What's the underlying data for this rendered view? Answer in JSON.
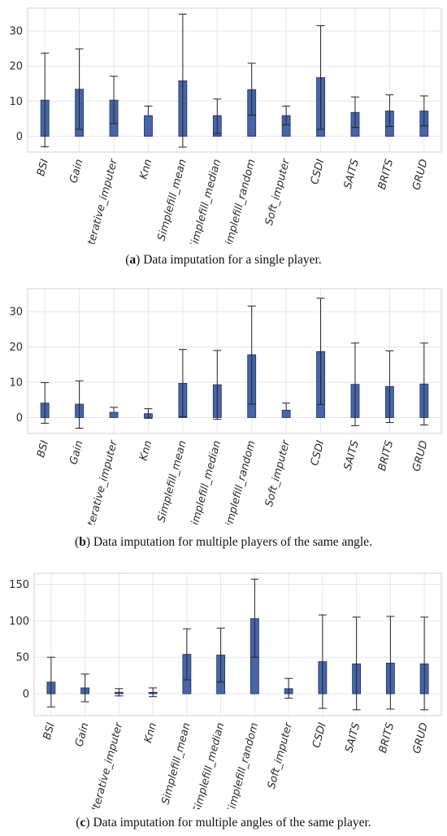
{
  "colors": {
    "bar": "#4766a8",
    "bar_edge": "#1d2f5c",
    "grid": "#e6e6e6",
    "axes": "#d0d0d0",
    "whisker": "#222222"
  },
  "chart_data": [
    {
      "type": "bar",
      "categories": [
        "BSI",
        "Gain",
        "Iterative_imputer",
        "Knn",
        "Simplefill_mean",
        "Simplefill_median",
        "Simplefill_random",
        "Soft_imputer",
        "CSDI",
        "SAITS",
        "BRITS",
        "GRUD"
      ],
      "values": [
        10.3,
        13.4,
        10.3,
        5.9,
        15.8,
        5.9,
        13.3,
        5.9,
        16.7,
        6.8,
        7.2,
        7.2
      ],
      "upper": [
        23.7,
        24.9,
        17.1,
        8.6,
        34.8,
        10.6,
        20.8,
        8.6,
        31.5,
        11.2,
        11.8,
        11.5
      ],
      "lower": [
        -3.0,
        null,
        null,
        null,
        -3.1,
        null,
        null,
        null,
        null,
        null,
        null,
        null
      ],
      "inner": [
        null,
        2.0,
        3.6,
        null,
        null,
        0.8,
        6.0,
        3.3,
        2.0,
        2.5,
        2.8,
        3.0
      ],
      "yticks": [
        0,
        10,
        20,
        30
      ],
      "ylim": [
        -4.5,
        36.5
      ],
      "grid": true,
      "caption_label": "a",
      "caption_text": " Data imputation for a single player."
    },
    {
      "type": "bar",
      "categories": [
        "BSI",
        "Gain",
        "Iterative_imputer",
        "Knn",
        "Simplefill_mean",
        "Simplefill_median",
        "Simplefill_random",
        "Soft_imputer",
        "CSDI",
        "SAITS",
        "BRITS",
        "GRUD"
      ],
      "values": [
        4.1,
        3.8,
        1.5,
        1.1,
        9.7,
        9.3,
        17.8,
        2.1,
        18.7,
        9.4,
        8.8,
        9.5
      ],
      "upper": [
        9.9,
        10.4,
        2.9,
        2.5,
        19.3,
        19.0,
        31.6,
        4.1,
        33.8,
        21.1,
        18.9,
        21.1
      ],
      "lower": [
        -1.6,
        -3.0,
        null,
        -0.2,
        null,
        -0.5,
        null,
        null,
        null,
        -2.3,
        -1.4,
        -2.1
      ],
      "inner": [
        null,
        null,
        null,
        null,
        0.2,
        null,
        3.8,
        null,
        3.7,
        null,
        null,
        null
      ],
      "yticks": [
        0,
        10,
        20,
        30
      ],
      "ylim": [
        -4.5,
        36.5
      ],
      "grid": true,
      "caption_label": "b",
      "caption_text": " Data imputation for multiple players of the same angle."
    },
    {
      "type": "bar",
      "categories": [
        "BSI",
        "Gain",
        "Iterative_imputer",
        "Knn",
        "Simplefill_mean",
        "Simplefill_median",
        "Simplefill_random",
        "Soft_imputer",
        "CSDI",
        "SAITS",
        "BRITS",
        "GRUD"
      ],
      "values": [
        16,
        8,
        2,
        2,
        54,
        53,
        103,
        7,
        44,
        41,
        42,
        41
      ],
      "upper": [
        50,
        27,
        7,
        8,
        89,
        90,
        157,
        21,
        108,
        105,
        106,
        105
      ],
      "lower": [
        -18,
        -11,
        -3,
        -4,
        null,
        null,
        null,
        -6,
        -20,
        -22,
        -21,
        -22
      ],
      "inner": [
        null,
        null,
        null,
        null,
        19,
        16,
        50,
        null,
        null,
        null,
        null,
        null
      ],
      "yticks": [
        0,
        50,
        100,
        150
      ],
      "ylim": [
        -30,
        165
      ],
      "grid": true,
      "caption_label": "c",
      "caption_text": " Data imputation for multiple angles of the same player."
    }
  ]
}
